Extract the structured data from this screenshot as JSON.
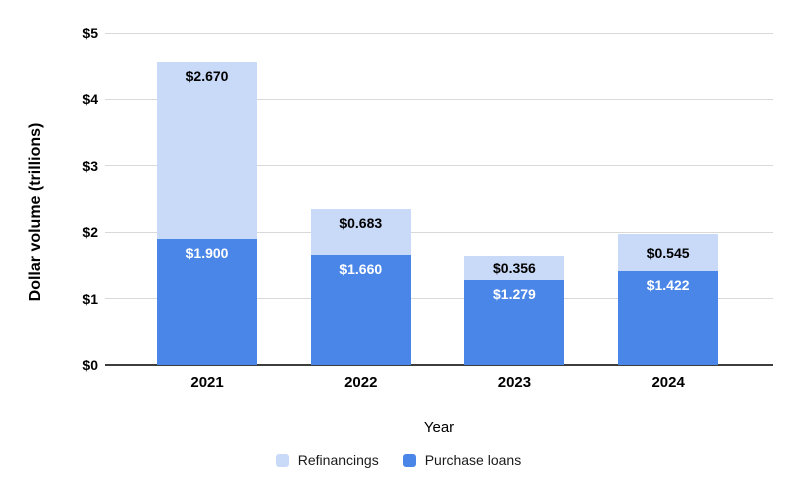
{
  "chart_data": {
    "type": "bar",
    "stacked": true,
    "title": "",
    "xlabel": "Year",
    "ylabel": "Dollar volume (trillions)",
    "categories": [
      "2021",
      "2022",
      "2023",
      "2024"
    ],
    "series": [
      {
        "name": "Refinancings",
        "color": "#c9daf8",
        "values": [
          2.67,
          0.683,
          0.356,
          0.545
        ],
        "labels": [
          "$2.670",
          "$0.683",
          "$0.356",
          "$0.545"
        ],
        "label_color": "#000000"
      },
      {
        "name": "Purchase loans",
        "color": "#4a86e8",
        "values": [
          1.9,
          1.66,
          1.279,
          1.422
        ],
        "labels": [
          "$1.900",
          "$1.660",
          "$1.279",
          "$1.422"
        ],
        "label_color": "#ffffff"
      }
    ],
    "stack_order_bottom_to_top": [
      "Purchase loans",
      "Refinancings"
    ],
    "ylim": [
      0,
      5
    ],
    "y_ticks": [
      "$0",
      "$1",
      "$2",
      "$3",
      "$4",
      "$5"
    ],
    "grid": true,
    "legend_position": "bottom",
    "colors": {
      "gridline": "#d9d9d9",
      "axis_line": "#3d3d3d",
      "tick_text": "#000000",
      "legend_text": "#1a1a1a",
      "background": "#ffffff"
    }
  }
}
